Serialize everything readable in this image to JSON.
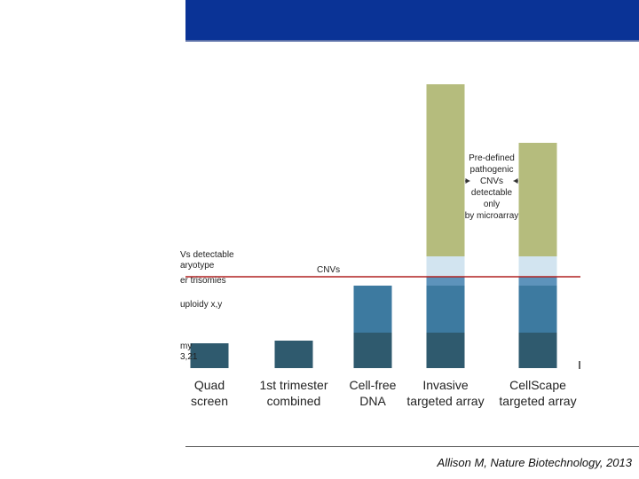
{
  "citation": "Allison M, Nature Biotechnology, 2013",
  "chart_data": {
    "type": "bar",
    "stacked": true,
    "categories": [
      [
        "Quad",
        "screen"
      ],
      [
        "1st trimester",
        "combined"
      ],
      [
        "Cell-free",
        "DNA"
      ],
      [
        "Invasive",
        "targeted array"
      ],
      [
        "CellScape",
        "targeted array"
      ]
    ],
    "ylim": [
      0,
      32
    ],
    "series": [
      {
        "color": "#2f5a6e",
        "values": [
          2.8,
          3.1,
          4.0,
          4.0,
          4.0
        ]
      },
      {
        "color": "#3d7aa0",
        "values": [
          0,
          0,
          5.3,
          5.3,
          5.3
        ]
      },
      {
        "color": "#5d93bb",
        "values": [
          0,
          0,
          0,
          1.0,
          1.0
        ]
      },
      {
        "color": "#d2e4f0",
        "values": [
          0,
          0,
          0,
          2.3,
          2.3
        ]
      },
      {
        "color": "#b5bc7d",
        "values": [
          0,
          0,
          0,
          19.4,
          12.8
        ]
      }
    ],
    "left_labels": [
      {
        "lines": [
          "Vs detectable",
          "aryotype"
        ],
        "y": 12.5
      },
      {
        "lines": [
          "er trisomies"
        ],
        "y": 9.6
      },
      {
        "lines": [
          "uploidy x,y"
        ],
        "y": 6.9
      },
      {
        "lines": [
          "my",
          "3,21"
        ],
        "y": 2.2
      }
    ],
    "threshold": {
      "y": 10.3,
      "label": "CNVs",
      "color": "#b02020"
    },
    "annotation": {
      "lines": [
        "Pre-defined",
        "pathogenic",
        "CNVs",
        "detectable",
        "only",
        "by microarray"
      ],
      "y_top": 23.4
    }
  }
}
